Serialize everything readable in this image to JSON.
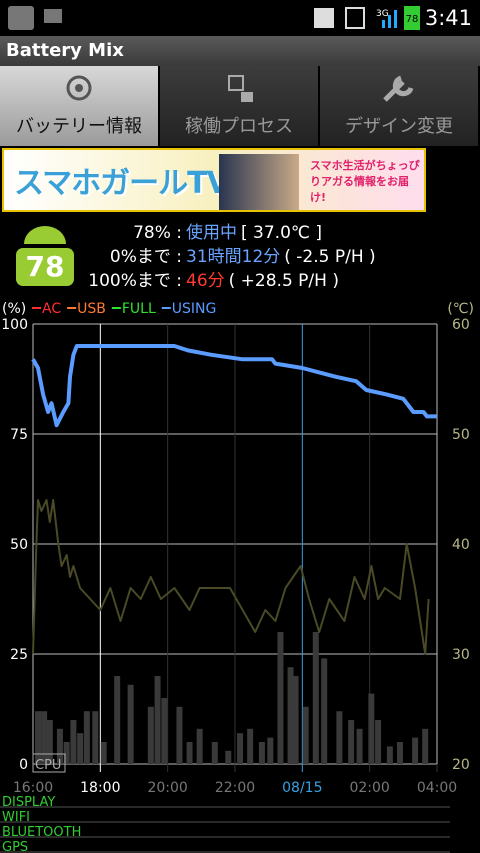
{
  "status_bar": {
    "network": "3G",
    "battery": "78",
    "time": "3:41"
  },
  "app_title": "Battery Mix",
  "tabs": [
    "バッテリー情報",
    "稼働プロセス",
    "デザイン変更"
  ],
  "banner": {
    "title": "スマホガールTV",
    "tagline": "スマホ生活がちょっぴりアガる情報をお届け!"
  },
  "battery": {
    "level": "78",
    "rows": [
      {
        "label": "78% :",
        "status": "使用中",
        "detail": "[ 37.0℃ ]"
      },
      {
        "label": "0%まで :",
        "status": "31時間12分",
        "detail": "( -2.5 P/H )"
      },
      {
        "label": "100%まで :",
        "status": "46分",
        "detail": "( +28.5 P/H )"
      }
    ]
  },
  "chart": {
    "type": "line",
    "y_label": "(%)",
    "y2_label": "(℃)",
    "cpu_label": "CPU",
    "legend": [
      {
        "name": "AC",
        "color": "#ff3030"
      },
      {
        "name": "USB",
        "color": "#ff7a30"
      },
      {
        "name": "FULL",
        "color": "#30e030"
      },
      {
        "name": "USING",
        "color": "#5a9cff"
      }
    ],
    "xlim": [
      16,
      28
    ],
    "xticks": [
      {
        "value": 16,
        "label": "16:00",
        "color": "#777"
      },
      {
        "value": 18,
        "label": "18:00",
        "color": "#ffffff"
      },
      {
        "value": 20,
        "label": "20:00",
        "color": "#777"
      },
      {
        "value": 22,
        "label": "22:00",
        "color": "#777"
      },
      {
        "value": 24,
        "label": "08/15",
        "color": "#3aa0e0"
      },
      {
        "value": 26,
        "label": "02:00",
        "color": "#777"
      },
      {
        "value": 28,
        "label": "04:00",
        "color": "#777"
      }
    ],
    "ylim": [
      0,
      100
    ],
    "yticks": [
      0,
      25,
      50,
      75,
      100
    ],
    "y2lim": [
      20,
      60
    ],
    "y2ticks": [
      20,
      30,
      40,
      50,
      60
    ],
    "grid": true,
    "series": [
      {
        "name": "USING",
        "color": "#5a9cff",
        "x": [
          16,
          16.15,
          16.3,
          16.45,
          16.55,
          16.7,
          16.9,
          17.05,
          17.1,
          17.2,
          17.3,
          19,
          20.2,
          20.6,
          21.3,
          22.2,
          23.1,
          23.2,
          24,
          24.5,
          25,
          25.6,
          25.9,
          26.5,
          27,
          27.1,
          27.3,
          27.6,
          27.7,
          28
        ],
        "values": [
          92,
          90,
          84,
          80,
          82,
          77,
          80,
          82,
          88,
          93,
          95,
          95,
          95,
          94,
          93,
          92,
          92,
          91,
          90,
          89,
          88,
          87,
          85,
          84,
          83,
          82,
          80,
          80,
          79,
          79
        ]
      },
      {
        "name": "temperature",
        "axis": "y2",
        "color": "#4a4a26",
        "x": [
          16,
          16.1,
          16.15,
          16.25,
          16.4,
          16.5,
          16.6,
          16.75,
          16.85,
          17,
          17.1,
          17.2,
          17.4,
          17.7,
          18,
          18.3,
          18.6,
          18.9,
          19.2,
          19.5,
          19.8,
          20.2,
          20.65,
          20.95,
          21.85,
          22.6,
          22.9,
          23.2,
          23.5,
          23.95,
          24.2,
          24.5,
          24.8,
          25.25,
          25.55,
          25.85,
          26.05,
          26.25,
          26.45,
          26.9,
          27.1,
          27.35,
          27.65,
          27.75
        ],
        "values": [
          30,
          40,
          44,
          43,
          44,
          42,
          44,
          40,
          38,
          39,
          37,
          38,
          36,
          35,
          34,
          36,
          33,
          36,
          35,
          37,
          35,
          36,
          34,
          36,
          36,
          32,
          34,
          33,
          36,
          38,
          35,
          32,
          35,
          33,
          37,
          35,
          38,
          35,
          36,
          35,
          40,
          36,
          30,
          35
        ]
      },
      {
        "name": "CPU",
        "type": "bar",
        "color": "#3a3a3a",
        "x": [
          16.15,
          16.33,
          16.5,
          16.8,
          17,
          17.2,
          17.4,
          17.6,
          17.85,
          18.1,
          18.5,
          18.9,
          19.5,
          19.7,
          19.9,
          20.35,
          20.65,
          20.95,
          21.4,
          21.8,
          22.15,
          22.45,
          22.8,
          23.05,
          23.35,
          23.65,
          23.8,
          24.1,
          24.4,
          24.65,
          25.1,
          25.45,
          25.7,
          26.05,
          26.25,
          26.6,
          26.9,
          27.35,
          27.65
        ],
        "values": [
          12,
          12,
          10,
          8,
          5,
          10,
          7,
          12,
          12,
          5,
          20,
          18,
          13,
          20,
          15,
          13,
          5,
          8,
          5,
          3,
          7,
          8,
          5,
          6,
          30,
          22,
          20,
          13,
          30,
          24,
          12,
          10,
          8,
          16,
          10,
          4,
          5,
          6,
          8
        ]
      }
    ]
  },
  "activity_rows": [
    "DISPLAY",
    "WIFI",
    "BLUETOOTH",
    "GPS"
  ]
}
